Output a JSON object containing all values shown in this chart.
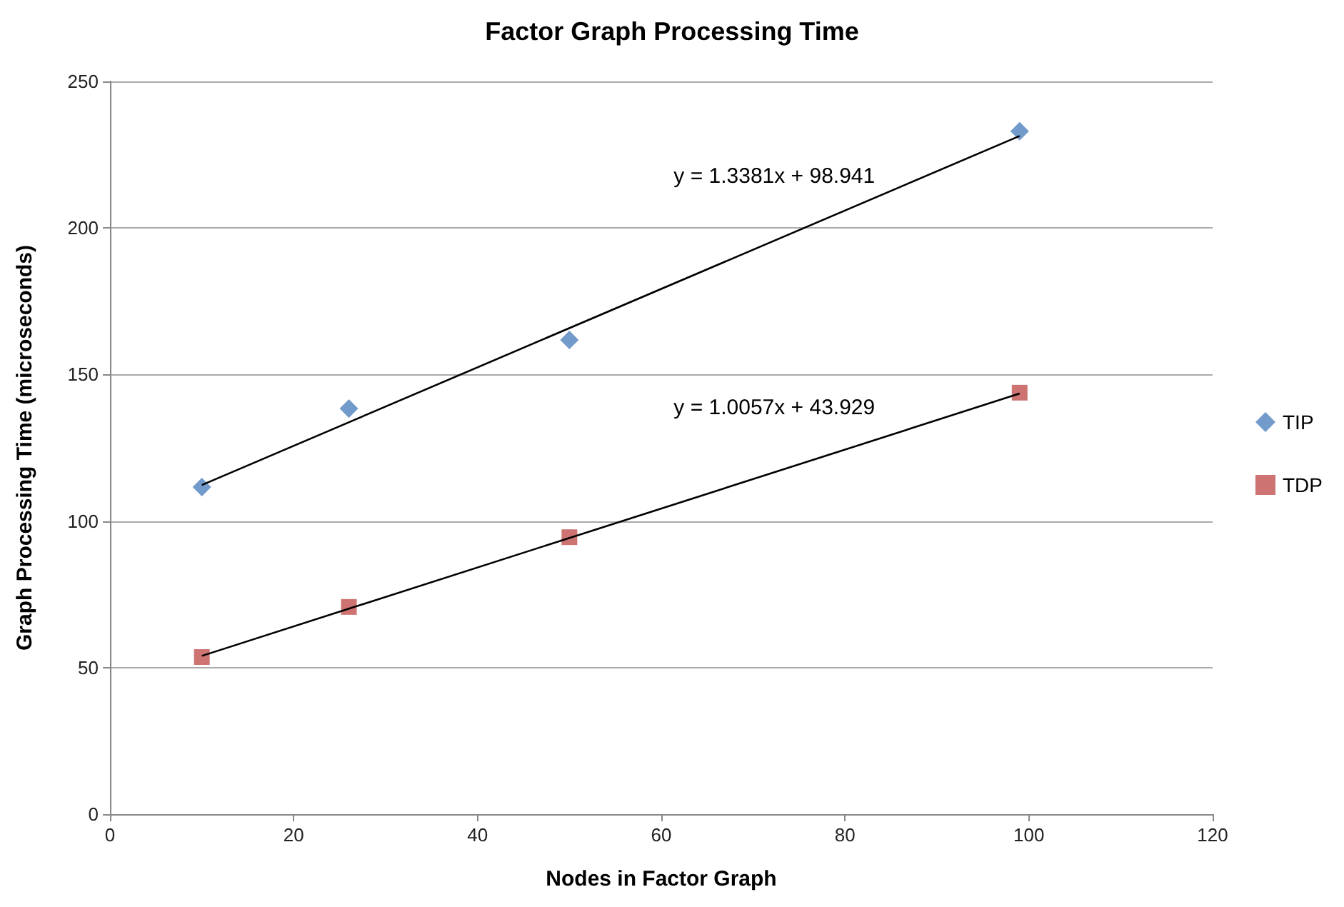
{
  "chart_data": {
    "type": "scatter",
    "title": "Factor Graph Processing Time",
    "xlabel": "Nodes in Factor Graph",
    "ylabel": "Graph Processing Time (microseconds)",
    "xlim": [
      0,
      120
    ],
    "xticks": [
      0,
      20,
      40,
      60,
      80,
      100,
      120
    ],
    "ylim": [
      0,
      250
    ],
    "yticks": [
      0,
      50,
      100,
      150,
      200,
      250
    ],
    "grid": "y",
    "legend": "right",
    "series": [
      {
        "name": "TIP",
        "color": "#4f81bd",
        "marker": "diamond",
        "x": [
          10,
          26,
          50,
          99
        ],
        "values": [
          111.6,
          138.4,
          161.8,
          233
        ]
      },
      {
        "name": "TDP",
        "color": "#c0504d",
        "marker": "square",
        "x": [
          10,
          26,
          50,
          99
        ],
        "values": [
          53.6,
          70.7,
          94.5,
          143.8
        ]
      },
      {
        "type": "line",
        "color": "#000000",
        "marker": "none",
        "x": [
          10,
          99
        ],
        "values": [
          112.3,
          231.4
        ]
      },
      {
        "type": "line",
        "color": "#000000",
        "marker": "none",
        "x": [
          10,
          99
        ],
        "values": [
          54,
          143.5
        ]
      }
    ],
    "annotations": [
      "y = 1.3381x + 98.941",
      "y = 1.0057x + 43.929"
    ]
  }
}
